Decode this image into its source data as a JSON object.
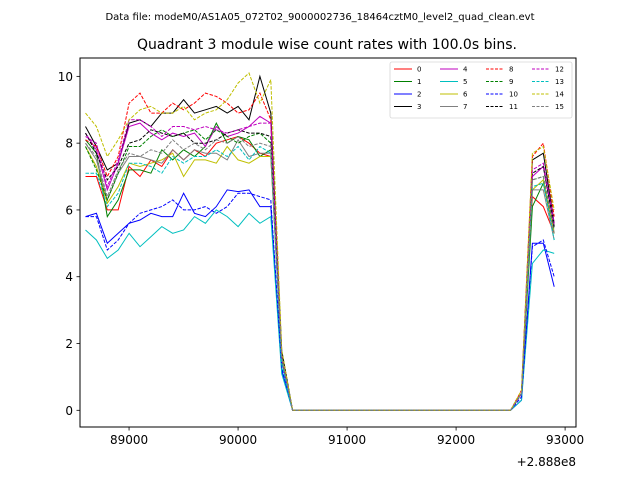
{
  "header": {
    "data_file": "Data file: modeM0/AS1A05_072T02_9000002736_18464cztM0_level2_quad_clean.evt"
  },
  "chart_data": {
    "type": "line",
    "title": "Quadrant 3 module wise count rates with 100.0s bins.",
    "xlabel": "",
    "ylabel": "",
    "x_offset_label": "+2.888e8",
    "xlim": [
      88550,
      93100
    ],
    "ylim": [
      -0.5,
      10.55
    ],
    "x_ticks": [
      89000,
      90000,
      91000,
      92000,
      93000
    ],
    "x_tick_labels": [
      "89000",
      "90000",
      "91000",
      "92000",
      "93000"
    ],
    "y_ticks": [
      0,
      2,
      4,
      6,
      8,
      10
    ],
    "y_tick_labels": [
      "0",
      "2",
      "4",
      "6",
      "8",
      "10"
    ],
    "grid": false,
    "legend_position": "top-right",
    "x": [
      88600,
      88700,
      88800,
      88900,
      89000,
      89100,
      89200,
      89300,
      89400,
      89500,
      89600,
      89700,
      89800,
      89900,
      90000,
      90100,
      90200,
      90300,
      90400,
      90500,
      90600,
      92500,
      92600,
      92700,
      92800,
      92900
    ],
    "series": [
      {
        "name": "0",
        "color": "#ff0000",
        "dash": "solid",
        "values": [
          7.0,
          7.0,
          6.0,
          6.0,
          7.3,
          7.0,
          7.5,
          7.3,
          7.8,
          7.5,
          7.8,
          7.6,
          8.0,
          8.1,
          8.2,
          8.0,
          7.7,
          7.6,
          1.6,
          0.0,
          0.0,
          0.0,
          0.5,
          6.4,
          6.1,
          5.3
        ]
      },
      {
        "name": "1",
        "color": "#008000",
        "dash": "solid",
        "values": [
          8.1,
          7.7,
          5.8,
          6.3,
          7.2,
          7.2,
          7.1,
          7.8,
          7.5,
          7.8,
          7.6,
          7.9,
          8.6,
          8.0,
          8.2,
          8.1,
          7.6,
          7.8,
          1.5,
          0.0,
          0.0,
          0.0,
          0.5,
          6.1,
          6.8,
          5.3
        ]
      },
      {
        "name": "2",
        "color": "#0000ff",
        "dash": "solid",
        "values": [
          5.8,
          5.9,
          5.0,
          5.3,
          5.6,
          5.7,
          5.9,
          5.8,
          5.8,
          6.5,
          5.9,
          5.8,
          6.1,
          6.6,
          6.55,
          6.6,
          6.1,
          6.1,
          1.2,
          0.0,
          0.0,
          0.0,
          0.3,
          5.0,
          5.0,
          3.7
        ]
      },
      {
        "name": "3",
        "color": "#000000",
        "dash": "solid",
        "values": [
          8.5,
          7.9,
          7.2,
          7.4,
          8.6,
          8.7,
          8.5,
          8.9,
          8.9,
          9.3,
          8.9,
          9.0,
          9.1,
          8.9,
          9.1,
          8.7,
          10.0,
          8.9,
          1.8,
          0.0,
          0.0,
          0.0,
          0.5,
          7.5,
          7.7,
          5.6
        ]
      },
      {
        "name": "4",
        "color": "#bf00bf",
        "dash": "solid",
        "values": [
          8.3,
          7.8,
          6.6,
          7.4,
          8.5,
          8.6,
          8.3,
          8.1,
          8.3,
          8.2,
          8.3,
          7.9,
          8.5,
          8.2,
          8.3,
          8.5,
          8.8,
          8.6,
          1.6,
          0.0,
          0.0,
          0.0,
          0.5,
          7.0,
          7.3,
          5.5
        ]
      },
      {
        "name": "5",
        "color": "#00bfbf",
        "dash": "solid",
        "values": [
          5.4,
          5.1,
          4.55,
          4.8,
          5.3,
          4.9,
          5.2,
          5.5,
          5.3,
          5.4,
          5.8,
          5.6,
          6.0,
          5.8,
          5.5,
          5.9,
          5.6,
          5.8,
          1.1,
          0.0,
          0.0,
          0.0,
          0.3,
          4.4,
          4.8,
          4.7
        ]
      },
      {
        "name": "6",
        "color": "#bfbf00",
        "dash": "solid",
        "values": [
          7.9,
          7.3,
          6.2,
          6.7,
          7.4,
          7.3,
          7.4,
          7.5,
          7.7,
          7.0,
          7.5,
          7.5,
          7.4,
          7.9,
          7.5,
          7.4,
          7.6,
          7.6,
          1.6,
          0.0,
          0.0,
          0.0,
          0.5,
          6.6,
          6.9,
          5.3
        ]
      },
      {
        "name": "7",
        "color": "#808080",
        "dash": "solid",
        "values": [
          8.0,
          7.5,
          6.3,
          7.1,
          7.6,
          7.6,
          7.5,
          7.4,
          7.8,
          7.5,
          7.8,
          7.7,
          7.7,
          7.5,
          8.1,
          7.6,
          7.7,
          7.7,
          1.6,
          0.0,
          0.0,
          0.0,
          0.5,
          6.6,
          6.6,
          5.1
        ]
      },
      {
        "name": "8",
        "color": "#ff0000",
        "dash": "dashed",
        "values": [
          8.1,
          7.9,
          7.0,
          7.6,
          9.2,
          9.5,
          8.9,
          8.9,
          9.2,
          9.0,
          9.2,
          9.5,
          9.4,
          9.2,
          8.9,
          9.0,
          9.5,
          8.7,
          1.6,
          0.0,
          0.0,
          0.0,
          0.6,
          7.6,
          8.0,
          5.8
        ]
      },
      {
        "name": "9",
        "color": "#008000",
        "dash": "dashed",
        "values": [
          7.9,
          7.2,
          6.3,
          7.1,
          7.9,
          7.9,
          8.2,
          8.4,
          8.2,
          8.3,
          8.4,
          8.1,
          8.4,
          8.2,
          8.0,
          8.2,
          8.3,
          8.0,
          1.6,
          0.0,
          0.0,
          0.0,
          0.5,
          6.9,
          7.0,
          5.4
        ]
      },
      {
        "name": "10",
        "color": "#0000ff",
        "dash": "dashed",
        "values": [
          5.8,
          5.8,
          4.8,
          5.1,
          5.6,
          5.9,
          6.0,
          6.1,
          6.3,
          6.0,
          6.0,
          6.1,
          5.9,
          6.1,
          6.5,
          6.5,
          6.4,
          6.3,
          1.3,
          0.0,
          0.0,
          0.0,
          0.4,
          4.9,
          5.1,
          4.0
        ]
      },
      {
        "name": "11",
        "color": "#000000",
        "dash": "dashed",
        "values": [
          8.3,
          7.7,
          6.9,
          7.3,
          8.0,
          8.1,
          8.4,
          8.3,
          8.2,
          8.3,
          8.0,
          8.0,
          8.1,
          8.3,
          8.4,
          8.3,
          8.3,
          8.2,
          1.7,
          0.0,
          0.0,
          0.0,
          0.5,
          7.1,
          7.3,
          5.5
        ]
      },
      {
        "name": "12",
        "color": "#bf00bf",
        "dash": "dashed",
        "values": [
          8.2,
          8.0,
          6.7,
          7.5,
          8.7,
          8.7,
          8.5,
          8.2,
          8.5,
          8.5,
          8.4,
          8.5,
          8.4,
          8.3,
          8.4,
          8.5,
          8.6,
          8.6,
          1.6,
          0.0,
          0.0,
          0.0,
          0.5,
          7.2,
          7.4,
          5.6
        ]
      },
      {
        "name": "13",
        "color": "#00bfbf",
        "dash": "dashed",
        "values": [
          7.1,
          7.1,
          6.1,
          6.5,
          7.4,
          7.4,
          7.3,
          7.1,
          7.6,
          7.4,
          7.6,
          7.6,
          7.8,
          7.6,
          7.9,
          7.5,
          7.9,
          7.7,
          1.4,
          0.0,
          0.0,
          0.0,
          0.5,
          6.7,
          6.8,
          5.1
        ]
      },
      {
        "name": "14",
        "color": "#bfbf00",
        "dash": "dashed",
        "values": [
          8.9,
          8.5,
          7.6,
          8.1,
          8.7,
          9.0,
          9.1,
          8.9,
          8.9,
          9.1,
          8.7,
          8.9,
          9.0,
          9.3,
          9.8,
          10.1,
          9.2,
          9.9,
          1.8,
          0.0,
          0.0,
          0.0,
          0.6,
          7.7,
          7.9,
          6.0
        ]
      },
      {
        "name": "15",
        "color": "#808080",
        "dash": "dashed",
        "values": [
          8.0,
          7.6,
          6.4,
          7.2,
          7.7,
          7.6,
          7.8,
          7.7,
          8.1,
          7.8,
          8.0,
          7.8,
          8.1,
          8.0,
          8.2,
          7.9,
          8.0,
          7.9,
          1.6,
          0.0,
          0.0,
          0.0,
          0.5,
          6.9,
          7.0,
          5.3
        ]
      }
    ]
  }
}
